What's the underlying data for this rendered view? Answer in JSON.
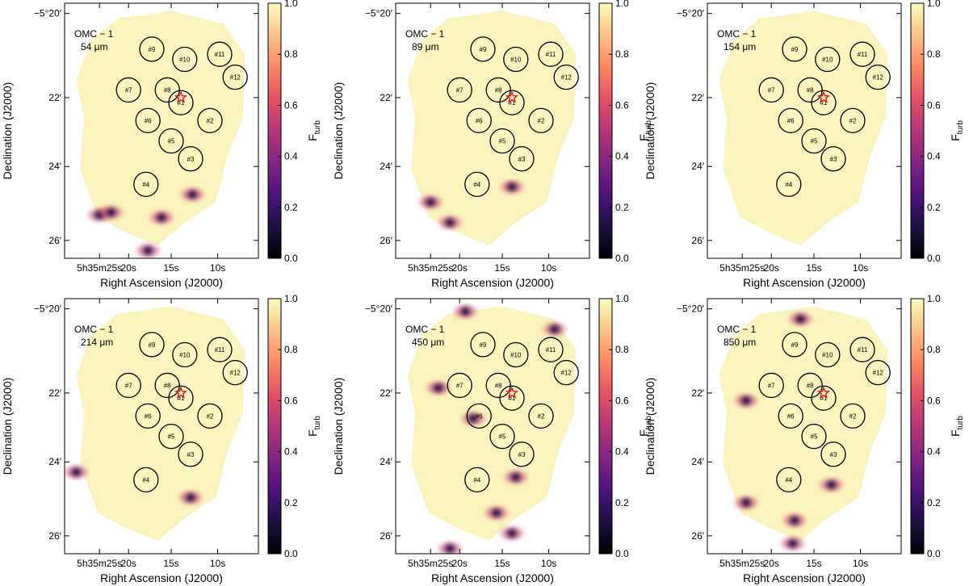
{
  "colors": {
    "cmap": [
      "#000004",
      "#1c1044",
      "#4f127b",
      "#812581",
      "#b5367a",
      "#e55064",
      "#fb8761",
      "#fec287",
      "#fcfdbf"
    ],
    "background_map": "#fbf4bf",
    "star": "#e8141e"
  },
  "chart_data": [
    {
      "type": "heatmap",
      "target": "OMC − 1",
      "wavelength": "54 μm",
      "xlabel": "Right Ascension (J2000)",
      "ylabel": "Declination (J2000)",
      "xticks": [
        "5h35m25s",
        "20s",
        "15s",
        "10s"
      ],
      "yticks": [
        "−5°20′",
        "22′",
        "24′",
        "26′"
      ],
      "colorbar": {
        "label": "Fturb",
        "range": [
          0.0,
          1.0
        ],
        "ticks": [
          "0.0",
          "0.2",
          "0.4",
          "0.6",
          "0.8",
          "1.0"
        ]
      },
      "regions": [
        "#1",
        "#2",
        "#3",
        "#4",
        "#5",
        "#6",
        "#7",
        "#8",
        "#9",
        "#10",
        "#11",
        "#12"
      ],
      "dark_spots": [
        [
          0.18,
          0.83
        ],
        [
          0.24,
          0.82
        ],
        [
          0.5,
          0.84
        ],
        [
          0.66,
          0.75
        ],
        [
          0.43,
          0.97
        ]
      ]
    },
    {
      "type": "heatmap",
      "target": "OMC − 1",
      "wavelength": "89 μm",
      "xlabel": "Right Ascension (J2000)",
      "ylabel": "Declination (J2000)",
      "xticks": [
        "5h35m25s",
        "20s",
        "15s",
        "10s"
      ],
      "yticks": [
        "−5°20′",
        "22′",
        "24′",
        "26′"
      ],
      "colorbar": {
        "label": "Fturb",
        "range": [
          0.0,
          1.0
        ],
        "ticks": [
          "0.0",
          "0.2",
          "0.4",
          "0.6",
          "0.8",
          "1.0"
        ]
      },
      "regions": [
        "#1",
        "#2",
        "#3",
        "#4",
        "#5",
        "#6",
        "#7",
        "#8",
        "#9",
        "#10",
        "#11",
        "#12"
      ],
      "dark_spots": [
        [
          0.18,
          0.78
        ],
        [
          0.28,
          0.86
        ],
        [
          0.6,
          0.72
        ]
      ]
    },
    {
      "type": "heatmap",
      "target": "OMC − 1",
      "wavelength": "154 μm",
      "xlabel": "Right Ascension (J2000)",
      "ylabel": "Declination (J2000)",
      "xticks": [
        "5h35m25s",
        "20s",
        "15s",
        "10s"
      ],
      "yticks": [
        "−5°20′",
        "22′",
        "24′",
        "26′"
      ],
      "colorbar": {
        "label": "Fturb",
        "range": [
          0.0,
          1.0
        ],
        "ticks": [
          "0.0",
          "0.2",
          "0.4",
          "0.6",
          "0.8",
          "1.0"
        ]
      },
      "regions": [
        "#1",
        "#2",
        "#3",
        "#4",
        "#5",
        "#6",
        "#7",
        "#8",
        "#9",
        "#10",
        "#11",
        "#12"
      ],
      "dark_spots": []
    },
    {
      "type": "heatmap",
      "target": "OMC − 1",
      "wavelength": "214 μm",
      "xlabel": "Right Ascension (J2000)",
      "ylabel": "Declination (J2000)",
      "xticks": [
        "5h35m25s",
        "20s",
        "15s",
        "10s"
      ],
      "yticks": [
        "−5°20′",
        "22′",
        "24′",
        "26′"
      ],
      "colorbar": {
        "label": "Fturb",
        "range": [
          0.0,
          1.0
        ],
        "ticks": [
          "0.0",
          "0.2",
          "0.4",
          "0.6",
          "0.8",
          "1.0"
        ]
      },
      "regions": [
        "#1",
        "#2",
        "#3",
        "#4",
        "#5",
        "#6",
        "#7",
        "#8",
        "#9",
        "#10",
        "#11",
        "#12"
      ],
      "dark_spots": [
        [
          0.06,
          0.68
        ],
        [
          0.65,
          0.78
        ]
      ]
    },
    {
      "type": "heatmap",
      "target": "OMC − 1",
      "wavelength": "450 μm",
      "xlabel": "Right Ascension (J2000)",
      "ylabel": "Declination (J2000)",
      "xticks": [
        "5h35m25s",
        "20s",
        "15s",
        "10s"
      ],
      "yticks": [
        "−5°20′",
        "22′",
        "24′",
        "26′"
      ],
      "colorbar": {
        "label": "Fturb",
        "range": [
          0.0,
          1.0
        ],
        "ticks": [
          "0.0",
          "0.2",
          "0.4",
          "0.6",
          "0.8",
          "1.0"
        ]
      },
      "regions": [
        "#1",
        "#2",
        "#3",
        "#4",
        "#5",
        "#6",
        "#7",
        "#8",
        "#9",
        "#10",
        "#11",
        "#12"
      ],
      "dark_spots": [
        [
          0.36,
          0.05
        ],
        [
          0.82,
          0.12
        ],
        [
          0.22,
          0.35
        ],
        [
          0.4,
          0.47
        ],
        [
          0.62,
          0.7
        ],
        [
          0.52,
          0.84
        ],
        [
          0.6,
          0.92
        ],
        [
          0.28,
          0.98
        ]
      ]
    },
    {
      "type": "heatmap",
      "target": "OMC − 1",
      "wavelength": "850 μm",
      "xlabel": "Right Ascension (J2000)",
      "ylabel": "Declination (J2000)",
      "xticks": [
        "5h35m25s",
        "20s",
        "15s",
        "10s"
      ],
      "yticks": [
        "−5°20′",
        "22′",
        "24′",
        "26′"
      ],
      "colorbar": {
        "label": "Fturb",
        "range": [
          0.0,
          1.0
        ],
        "ticks": [
          "0.0",
          "0.2",
          "0.4",
          "0.6",
          "0.8",
          "1.0"
        ]
      },
      "regions": [
        "#1",
        "#2",
        "#3",
        "#4",
        "#5",
        "#6",
        "#7",
        "#8",
        "#9",
        "#10",
        "#11",
        "#12"
      ],
      "dark_spots": [
        [
          0.48,
          0.08
        ],
        [
          0.2,
          0.4
        ],
        [
          0.64,
          0.73
        ],
        [
          0.45,
          0.87
        ],
        [
          0.44,
          0.96
        ],
        [
          0.2,
          0.8
        ]
      ]
    }
  ]
}
